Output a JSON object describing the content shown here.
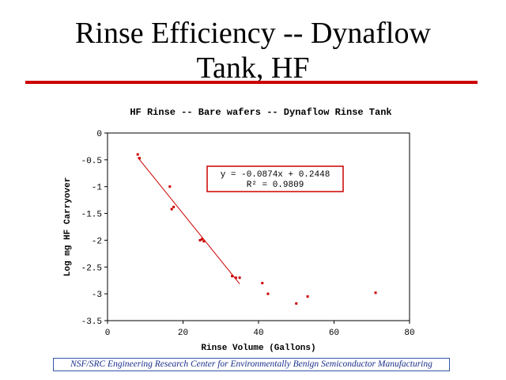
{
  "slide": {
    "title_line1": "Rinse Efficiency -- Dynaflow",
    "title_line2": "Tank, HF",
    "rule_color": "#cc0000"
  },
  "footer": {
    "text": "NSF/SRC Engineering Research Center for Environmentally Benign Semiconductor Manufacturing"
  },
  "chart_data": {
    "type": "scatter",
    "title": "HF Rinse -- Bare wafers -- Dynaflow Rinse Tank",
    "xlabel": "Rinse Volume (Gallons)",
    "ylabel": "Log mg HF Carryover",
    "xlim": [
      0,
      80
    ],
    "ylim": [
      -3.5,
      0
    ],
    "xticks": [
      0,
      20,
      40,
      60,
      80
    ],
    "yticks": [
      0,
      -0.5,
      -1,
      -1.5,
      -2,
      -2.5,
      -3,
      -3.5
    ],
    "grid": false,
    "series": [
      {
        "color": "#cc0000",
        "x": [
          8,
          8.5,
          16.5,
          17,
          17.5,
          24.5,
          25,
          25.5,
          33,
          34,
          35,
          41,
          42.5,
          50,
          53,
          71
        ],
        "y": [
          -0.4,
          -0.47,
          -1.0,
          -1.42,
          -1.38,
          -2.0,
          -1.98,
          -2.02,
          -2.67,
          -2.7,
          -2.7,
          -2.8,
          -3.0,
          -3.18,
          -3.05,
          -2.98
        ]
      }
    ],
    "trendline": {
      "slope": -0.0874,
      "intercept": 0.2448,
      "x_range": [
        8,
        35
      ],
      "color": "#cc0000"
    },
    "annotation": {
      "equation": "y = -0.0874x + 0.2448",
      "r2": "R² = 0.9809",
      "border_color": "#cc0000"
    }
  }
}
